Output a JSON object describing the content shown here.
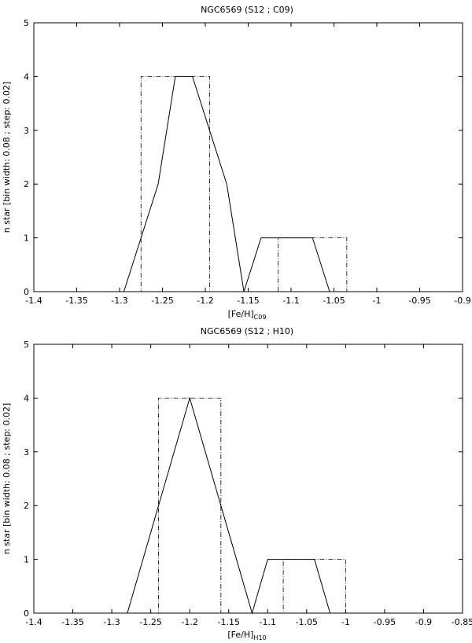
{
  "chart_data": [
    {
      "type": "line",
      "title": "NGC6569 (S12 ; C09)",
      "xlabel_main": "[Fe/H]",
      "xlabel_sub": "C09",
      "ylabel": "n star [bin width: 0.08 ; step: 0.02]",
      "xlim": [
        -1.4,
        -0.9
      ],
      "ylim": [
        0,
        5
      ],
      "xticks": [
        -1.4,
        -1.35,
        -1.3,
        -1.25,
        -1.2,
        -1.15,
        -1.1,
        -1.05,
        -1.0,
        -0.95,
        -0.9
      ],
      "xtick_labels": [
        "-1.4",
        "-1.35",
        "-1.3",
        "-1.25",
        "-1.2",
        "-1.15",
        "-1.1",
        "-1.05",
        "-1",
        "-0.95",
        "-0.9"
      ],
      "yticks": [
        0,
        1,
        2,
        3,
        4,
        5
      ],
      "ytick_labels": [
        "0",
        "1",
        "2",
        "3",
        "4",
        "5"
      ],
      "grid": false,
      "series": [
        {
          "style": "solid",
          "x": [
            -1.4,
            -1.295,
            -1.255,
            -1.235,
            -1.215,
            -1.195,
            -1.175,
            -1.155,
            -1.135,
            -1.115,
            -1.095,
            -1.075,
            -1.055,
            -0.9
          ],
          "y": [
            0,
            0,
            2,
            4,
            4,
            3,
            2,
            0,
            1,
            1,
            1,
            1,
            0,
            0
          ]
        },
        {
          "style": "dash-dot",
          "x": [
            -1.4,
            -1.275,
            -1.275,
            -1.195,
            -1.195,
            -1.115,
            -1.115,
            -1.035,
            -1.035,
            -0.9
          ],
          "y": [
            0,
            0,
            4,
            4,
            0,
            0,
            1,
            1,
            0,
            0
          ]
        }
      ]
    },
    {
      "type": "line",
      "title": "NGC6569 (S12 ; H10)",
      "xlabel_main": "[Fe/H]",
      "xlabel_sub": "H10",
      "ylabel": "n star [bin width: 0.08 ; step: 0.02]",
      "xlim": [
        -1.4,
        -0.85
      ],
      "ylim": [
        0,
        5
      ],
      "xticks": [
        -1.4,
        -1.35,
        -1.3,
        -1.25,
        -1.2,
        -1.15,
        -1.1,
        -1.05,
        -1.0,
        -0.95,
        -0.9,
        -0.85
      ],
      "xtick_labels": [
        "-1.4",
        "-1.35",
        "-1.3",
        "-1.25",
        "-1.2",
        "-1.15",
        "-1.1",
        "-1.05",
        "-1",
        "-0.95",
        "-0.9",
        "-0.85"
      ],
      "yticks": [
        0,
        1,
        2,
        3,
        4,
        5
      ],
      "ytick_labels": [
        "0",
        "1",
        "2",
        "3",
        "4",
        "5"
      ],
      "grid": false,
      "series": [
        {
          "style": "solid",
          "x": [
            -1.4,
            -1.28,
            -1.24,
            -1.2,
            -1.16,
            -1.12,
            -1.1,
            -1.08,
            -1.06,
            -1.04,
            -1.02,
            -0.85
          ],
          "y": [
            0,
            0,
            2,
            4,
            2,
            0,
            1,
            1,
            1,
            1,
            0,
            0
          ]
        },
        {
          "style": "dash-dot",
          "x": [
            -1.4,
            -1.24,
            -1.24,
            -1.16,
            -1.16,
            -1.08,
            -1.08,
            -1.0,
            -1.0,
            -0.85
          ],
          "y": [
            0,
            0,
            4,
            4,
            0,
            0,
            1,
            1,
            0,
            0
          ]
        }
      ]
    }
  ]
}
